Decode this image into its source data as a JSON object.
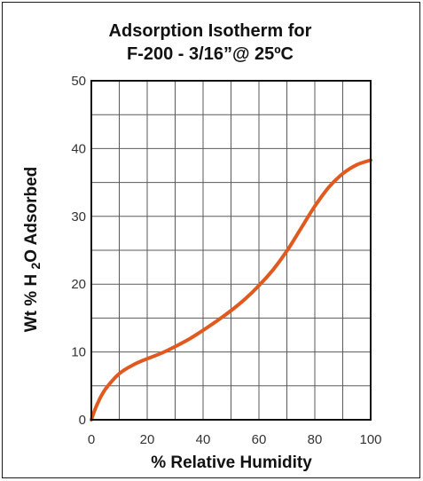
{
  "chart_data": {
    "type": "line",
    "title_line1": "Adsorption Isotherm for",
    "title_line2": "F-200 - 3/16”@ 25ºC",
    "xlabel": "% Relative Humidity",
    "ylabel": "Wt % H2O Adsorbed",
    "xlim": [
      0,
      100
    ],
    "ylim": [
      0,
      50
    ],
    "x_ticks": [
      0,
      20,
      40,
      60,
      80,
      100
    ],
    "y_ticks": [
      0,
      10,
      20,
      30,
      40,
      50
    ],
    "x_tick_labels": [
      "0",
      "20",
      "40",
      "60",
      "80",
      "100"
    ],
    "y_tick_labels": [
      "0",
      "10",
      "20",
      "30",
      "40",
      "50"
    ],
    "grid": true,
    "line_color": "#e05a20",
    "series": [
      {
        "x": [
          0,
          2,
          5,
          10,
          15,
          20,
          25,
          30,
          35,
          40,
          45,
          50,
          55,
          60,
          65,
          70,
          75,
          80,
          85,
          90,
          95,
          100
        ],
        "values": [
          0,
          2.2,
          4.5,
          6.8,
          8.1,
          9.0,
          9.8,
          10.8,
          11.9,
          13.2,
          14.6,
          16.1,
          17.8,
          19.8,
          22.1,
          24.9,
          28.2,
          31.5,
          34.3,
          36.3,
          37.6,
          38.3
        ]
      }
    ]
  }
}
